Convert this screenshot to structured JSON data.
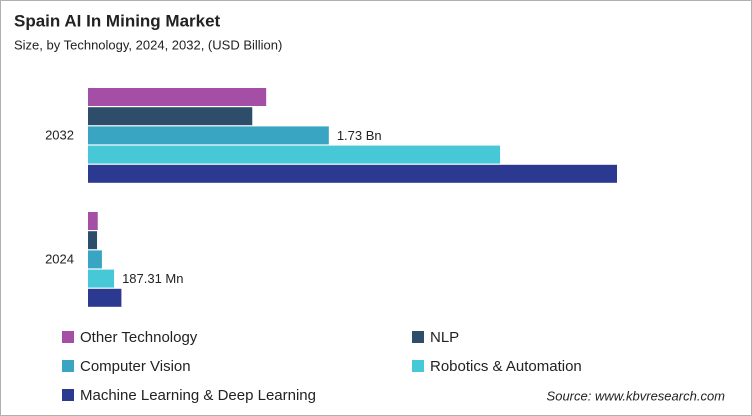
{
  "chart_data": {
    "type": "bar",
    "orientation": "horizontal",
    "title": "Spain AI In Mining Market",
    "subtitle": "Size, by Technology, 2024, 2032, (USD Billion)",
    "categories": [
      "2032",
      "2024"
    ],
    "series": [
      {
        "name": "Other Technology",
        "color": "#a54ea6",
        "values": [
          1.28,
          0.07
        ]
      },
      {
        "name": "NLP",
        "color": "#2e4d6b",
        "values": [
          1.18,
          0.065
        ]
      },
      {
        "name": "Computer Vision",
        "color": "#3aa5c2",
        "values": [
          1.73,
          0.1
        ],
        "value_labels": [
          "1.73 Bn",
          null
        ]
      },
      {
        "name": "Robotics & Automation",
        "color": "#46c8d6",
        "values": [
          2.96,
          0.18731
        ],
        "value_labels": [
          null,
          "187.31 Mn"
        ]
      },
      {
        "name": "Machine Learning & Deep Learning",
        "color": "#2b3990",
        "values": [
          3.8,
          0.24
        ]
      }
    ],
    "source": "Source: www.kbvresearch.com"
  }
}
